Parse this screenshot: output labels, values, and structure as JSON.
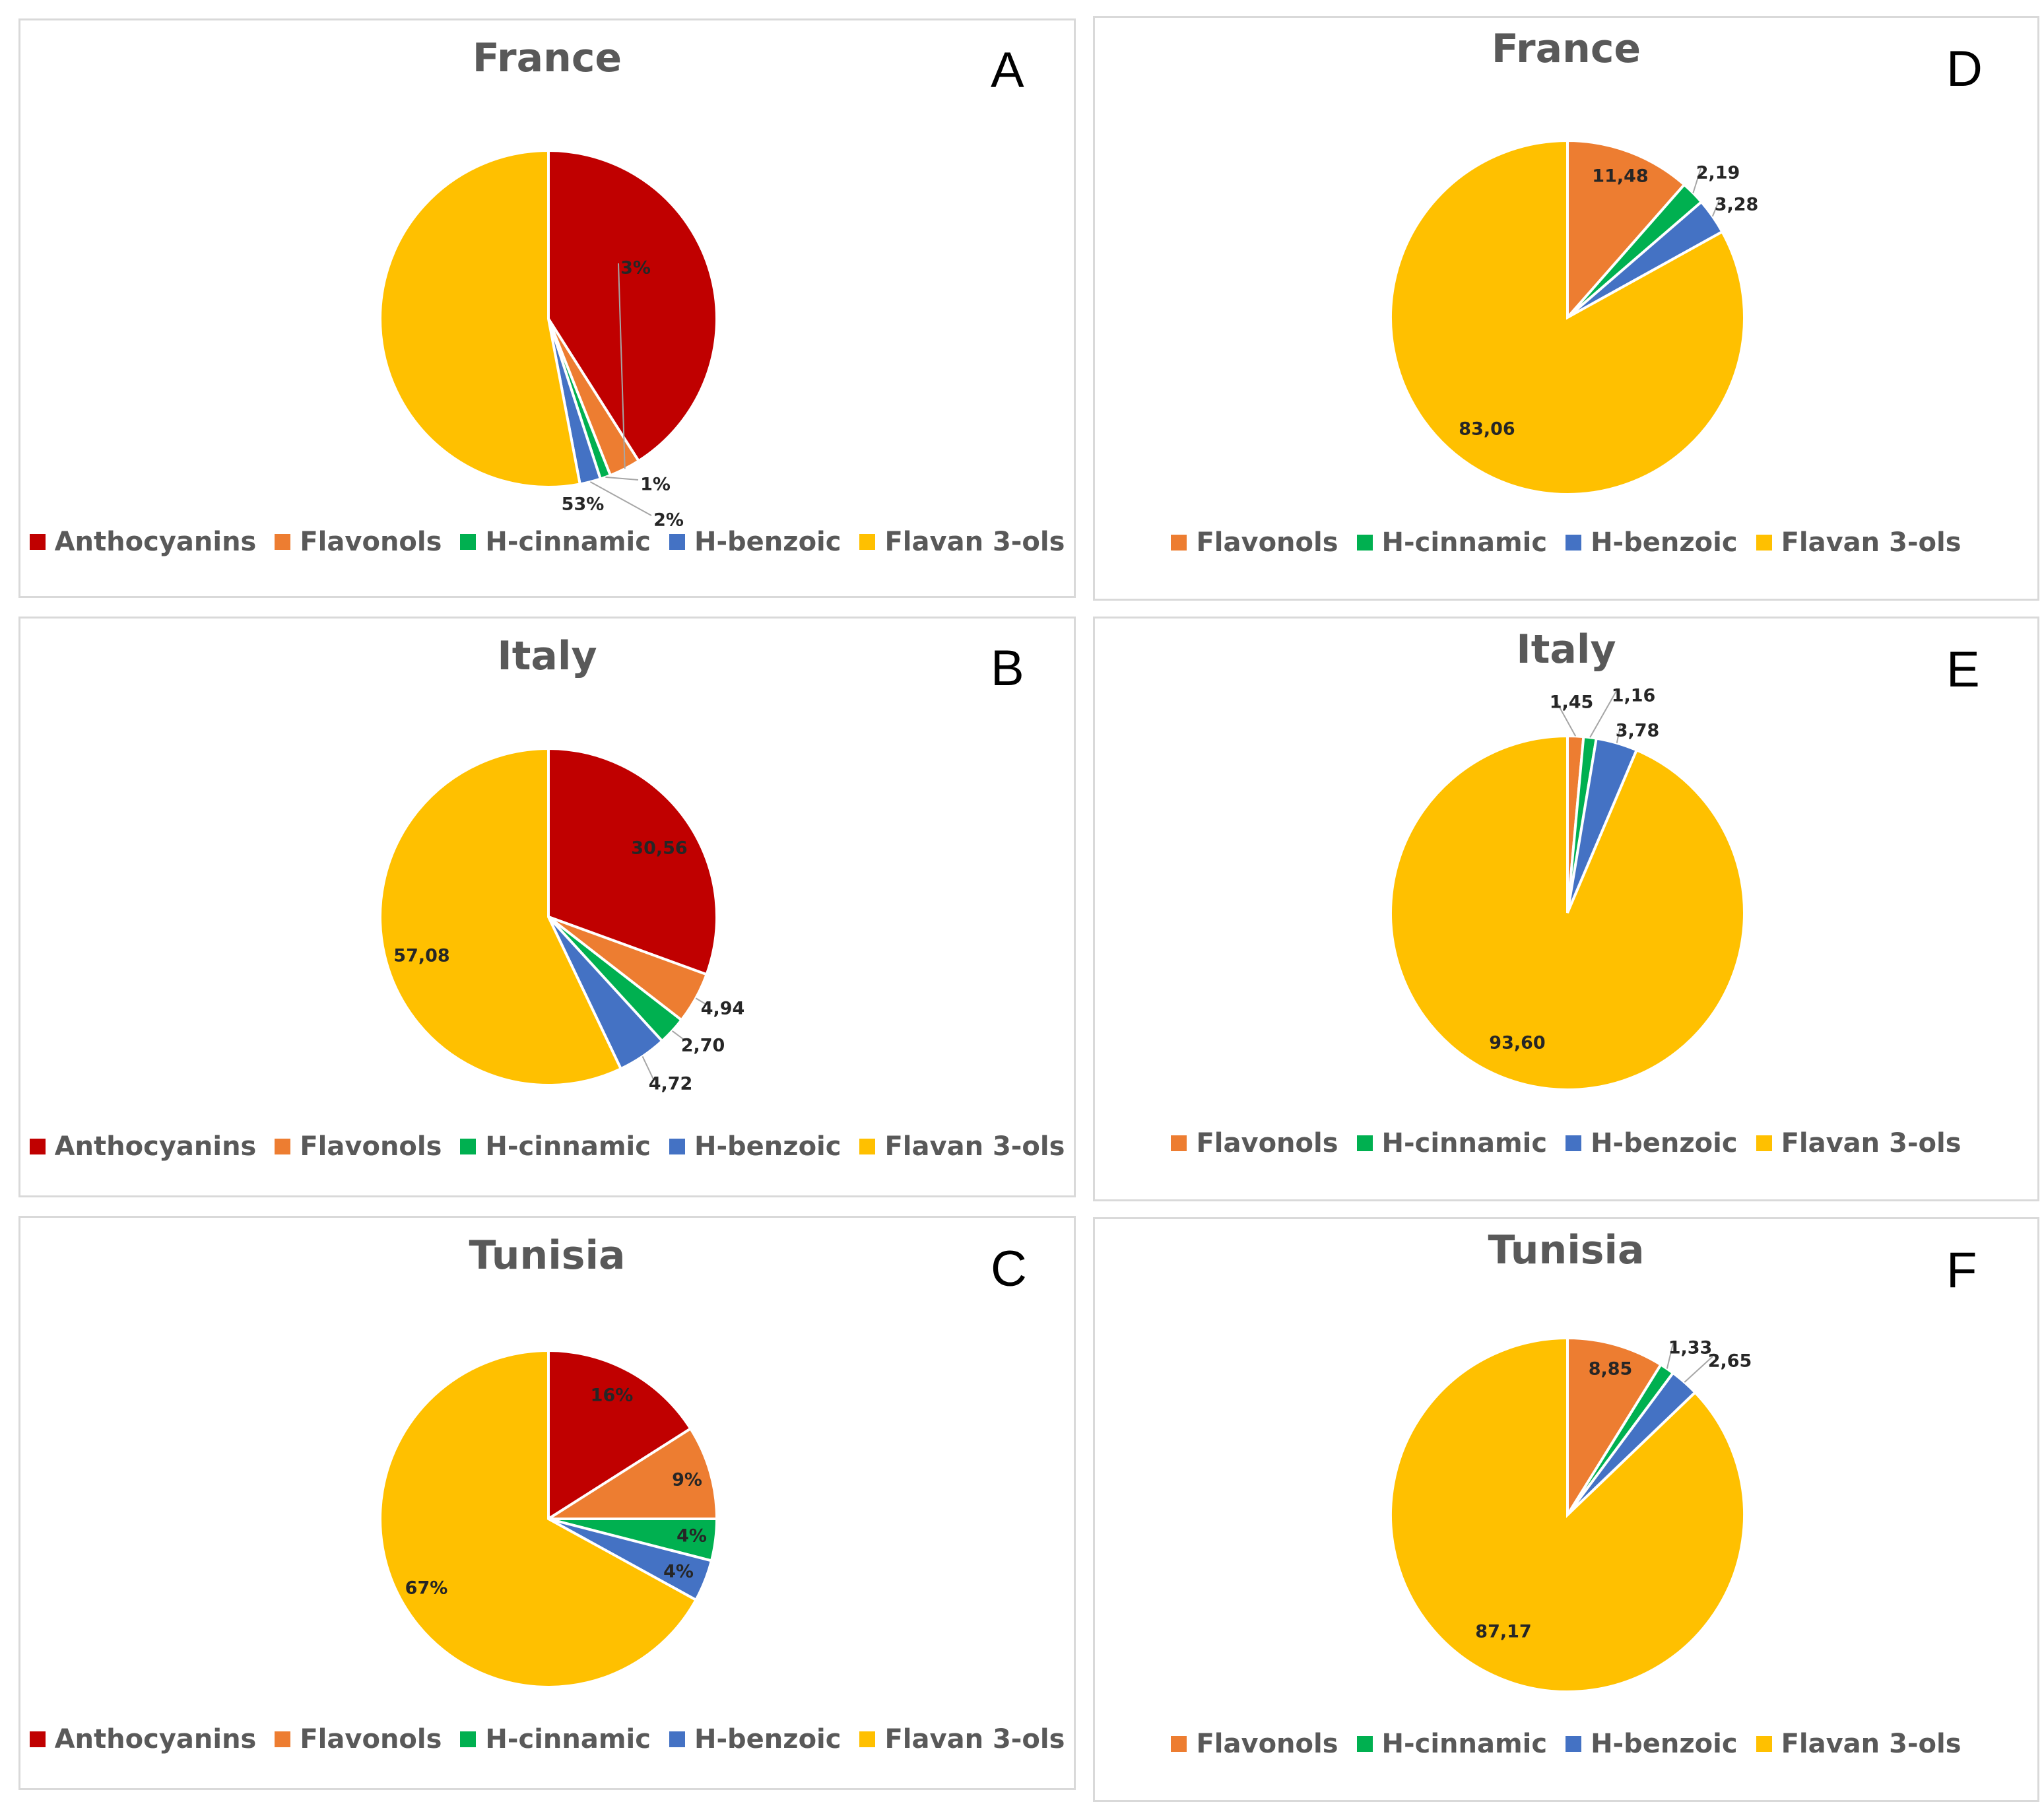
{
  "colors": {
    "Anthocyanins": "#c00000",
    "Flavonols": "#ed7d31",
    "H-cinnamic": "#00b050",
    "H-benzoic": "#4472c4",
    "Flavan 3-ols": "#ffc000"
  },
  "chart_data": [
    {
      "panel": "A",
      "type": "pie",
      "title": "France",
      "categories": [
        "Anthocyanins",
        "Flavonols",
        "H-cinnamic",
        "H-benzoic",
        "Flavan 3-ols"
      ],
      "values": [
        41,
        3,
        1,
        2,
        53
      ],
      "data_labels": [
        "41%",
        "3%",
        "1%",
        "2%",
        "53%"
      ],
      "legend": [
        "Anthocyanins",
        "Flavonols",
        "H-cinnamic",
        "H-benzoic",
        "Flavan 3-ols"
      ],
      "legend_position": "bottom"
    },
    {
      "panel": "B",
      "type": "pie",
      "title": "Italy",
      "categories": [
        "Anthocyanins",
        "Flavonols",
        "H-cinnamic",
        "H-benzoic",
        "Flavan 3-ols"
      ],
      "values": [
        30.56,
        4.94,
        2.7,
        4.72,
        57.08
      ],
      "data_labels": [
        "30,56",
        "4,94",
        "2,70",
        "4,72",
        "57,08"
      ],
      "legend": [
        "Anthocyanins",
        "Flavonols",
        "H-cinnamic",
        "H-benzoic",
        "Flavan 3-ols"
      ],
      "legend_position": "bottom"
    },
    {
      "panel": "C",
      "type": "pie",
      "title": "Tunisia",
      "categories": [
        "Anthocyanins",
        "Flavonols",
        "H-cinnamic",
        "H-benzoic",
        "Flavan 3-ols"
      ],
      "values": [
        16,
        9,
        4,
        4,
        67
      ],
      "data_labels": [
        "16%",
        "9%",
        "4%",
        "4%",
        "67%"
      ],
      "legend": [
        "Anthocyanins",
        "Flavonols",
        "H-cinnamic",
        "H-benzoic",
        "Flavan 3-ols"
      ],
      "legend_position": "bottom"
    },
    {
      "panel": "D",
      "type": "pie",
      "title": "France",
      "categories": [
        "Flavonols",
        "H-cinnamic",
        "H-benzoic",
        "Flavan 3-ols"
      ],
      "values": [
        11.48,
        2.19,
        3.28,
        83.06
      ],
      "data_labels": [
        "11,48",
        "2,19",
        "3,28",
        "83,06"
      ],
      "legend": [
        "Flavonols",
        "H-cinnamic",
        "H-benzoic",
        "Flavan 3-ols"
      ],
      "legend_position": "bottom"
    },
    {
      "panel": "E",
      "type": "pie",
      "title": "Italy",
      "categories": [
        "Flavonols",
        "H-cinnamic",
        "H-benzoic",
        "Flavan 3-ols"
      ],
      "values": [
        1.45,
        1.16,
        3.78,
        93.6
      ],
      "data_labels": [
        "1,45",
        "1,16",
        "3,78",
        "93,60"
      ],
      "legend": [
        "Flavonols",
        "H-cinnamic",
        "H-benzoic",
        "Flavan 3-ols"
      ],
      "legend_position": "bottom"
    },
    {
      "panel": "F",
      "type": "pie",
      "title": "Tunisia",
      "categories": [
        "Flavonols",
        "H-cinnamic",
        "H-benzoic",
        "Flavan 3-ols"
      ],
      "values": [
        8.85,
        1.33,
        2.65,
        87.17
      ],
      "data_labels": [
        "8,85",
        "1,33",
        "2,65",
        "87,17"
      ],
      "legend": [
        "Flavonols",
        "H-cinnamic",
        "H-benzoic",
        "Flavan 3-ols"
      ],
      "legend_position": "bottom"
    }
  ]
}
